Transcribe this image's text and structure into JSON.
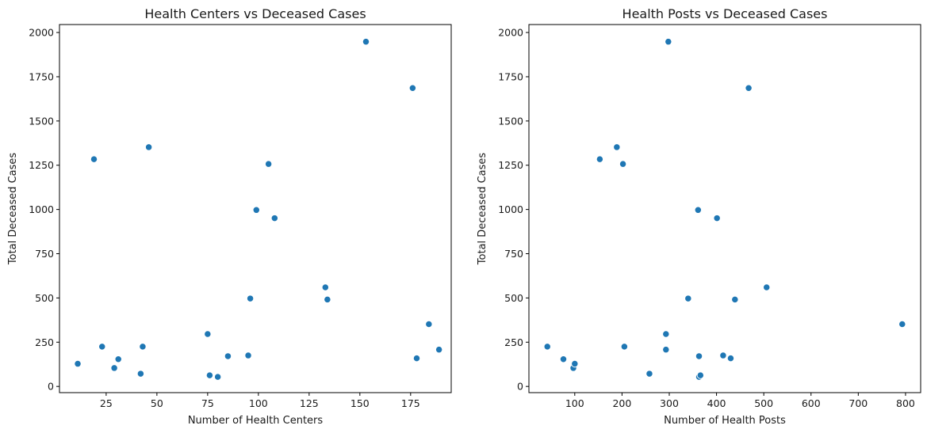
{
  "chart_data": [
    {
      "type": "scatter",
      "title": "Health Centers vs Deceased Cases",
      "xlabel": "Number of Health Centers",
      "ylabel": "Total Deceased Cases",
      "xlim": [
        2,
        195
      ],
      "ylim": [
        -35,
        2045
      ],
      "xticks": [
        25,
        50,
        75,
        100,
        125,
        150,
        175
      ],
      "yticks": [
        0,
        250,
        500,
        750,
        1000,
        1250,
        1500,
        1750,
        2000
      ],
      "marker_color": "#1f77b4",
      "grid": false,
      "points": [
        {
          "x": 11,
          "y": 128
        },
        {
          "x": 19,
          "y": 1284
        },
        {
          "x": 23,
          "y": 225
        },
        {
          "x": 29,
          "y": 104
        },
        {
          "x": 31,
          "y": 154
        },
        {
          "x": 42,
          "y": 72
        },
        {
          "x": 43,
          "y": 225
        },
        {
          "x": 46,
          "y": 1352
        },
        {
          "x": 75,
          "y": 296
        },
        {
          "x": 76,
          "y": 63
        },
        {
          "x": 80,
          "y": 54
        },
        {
          "x": 85,
          "y": 171
        },
        {
          "x": 95,
          "y": 175
        },
        {
          "x": 96,
          "y": 497
        },
        {
          "x": 99,
          "y": 997
        },
        {
          "x": 105,
          "y": 1257
        },
        {
          "x": 108,
          "y": 951
        },
        {
          "x": 133,
          "y": 560
        },
        {
          "x": 134,
          "y": 491
        },
        {
          "x": 153,
          "y": 1948
        },
        {
          "x": 176,
          "y": 1686
        },
        {
          "x": 178,
          "y": 159
        },
        {
          "x": 184,
          "y": 352
        },
        {
          "x": 189,
          "y": 208
        }
      ]
    },
    {
      "type": "scatter",
      "title": "Health Posts vs Deceased Cases",
      "xlabel": "Number of Health Posts",
      "ylabel": "Total Deceased Cases",
      "xlim": [
        3,
        832
      ],
      "ylim": [
        -35,
        2045
      ],
      "xticks": [
        100,
        200,
        300,
        400,
        500,
        600,
        700,
        800
      ],
      "yticks": [
        0,
        250,
        500,
        750,
        1000,
        1250,
        1500,
        1750,
        2000
      ],
      "marker_color": "#1f77b4",
      "grid": false,
      "points": [
        {
          "x": 42,
          "y": 225
        },
        {
          "x": 76,
          "y": 154
        },
        {
          "x": 97,
          "y": 104
        },
        {
          "x": 100,
          "y": 128
        },
        {
          "x": 153,
          "y": 1284
        },
        {
          "x": 189,
          "y": 1352
        },
        {
          "x": 202,
          "y": 1257
        },
        {
          "x": 205,
          "y": 225
        },
        {
          "x": 258,
          "y": 72
        },
        {
          "x": 293,
          "y": 296
        },
        {
          "x": 293,
          "y": 208
        },
        {
          "x": 298,
          "y": 1948
        },
        {
          "x": 340,
          "y": 497
        },
        {
          "x": 361,
          "y": 997
        },
        {
          "x": 363,
          "y": 171
        },
        {
          "x": 363,
          "y": 54
        },
        {
          "x": 366,
          "y": 63
        },
        {
          "x": 401,
          "y": 951
        },
        {
          "x": 414,
          "y": 175
        },
        {
          "x": 430,
          "y": 159
        },
        {
          "x": 439,
          "y": 491
        },
        {
          "x": 468,
          "y": 1686
        },
        {
          "x": 506,
          "y": 560
        },
        {
          "x": 793,
          "y": 352
        }
      ]
    }
  ]
}
